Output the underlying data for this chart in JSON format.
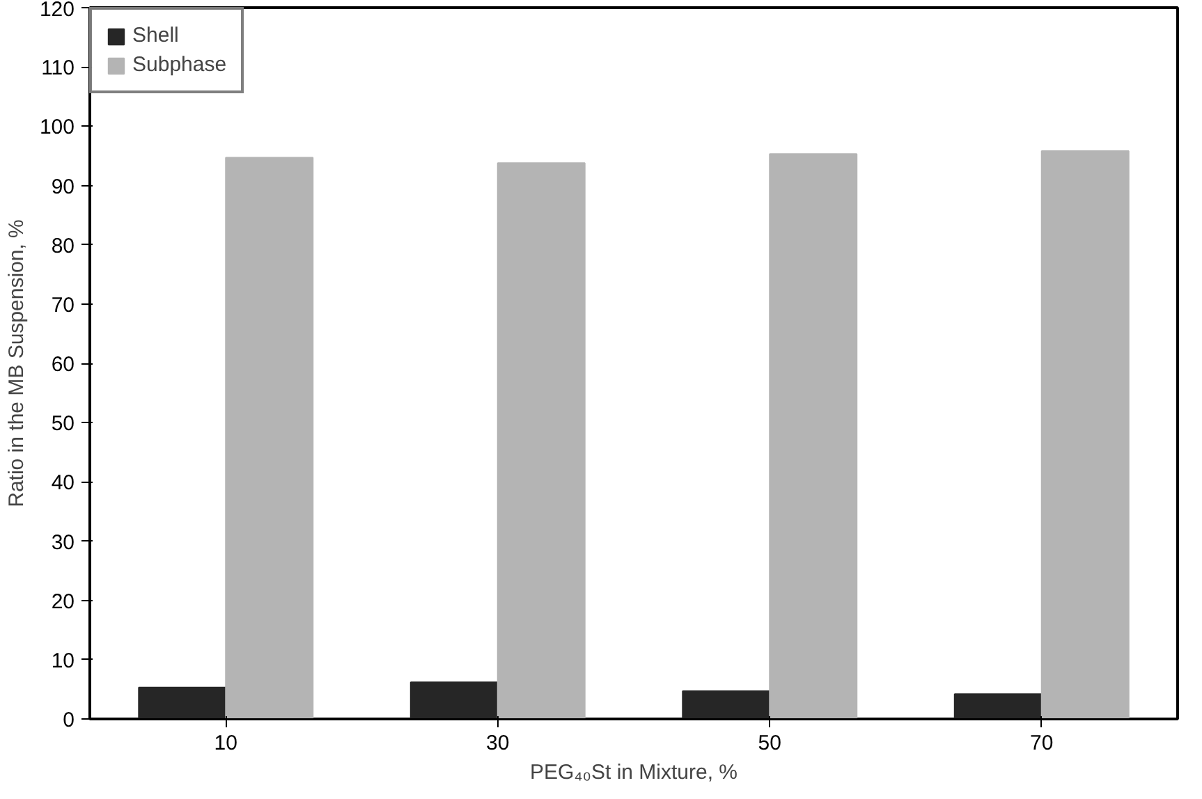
{
  "chart_data": {
    "type": "bar",
    "xlabel": "PEG₄₀St in Mixture, %",
    "ylabel": "Ratio in the MB Suspension, %",
    "categories": [
      "10",
      "30",
      "50",
      "70"
    ],
    "series": [
      {
        "name": "Shell",
        "color": "#262626",
        "values": [
          5.3,
          6.2,
          4.7,
          4.2
        ]
      },
      {
        "name": "Subphase",
        "color": "#b4b4b4",
        "values": [
          94.7,
          93.8,
          95.3,
          95.8
        ]
      }
    ],
    "ylim": [
      0,
      120
    ],
    "yticks": [
      0,
      10,
      20,
      30,
      40,
      50,
      60,
      70,
      80,
      90,
      100,
      110,
      120
    ],
    "grid": false,
    "legend": "top left"
  }
}
